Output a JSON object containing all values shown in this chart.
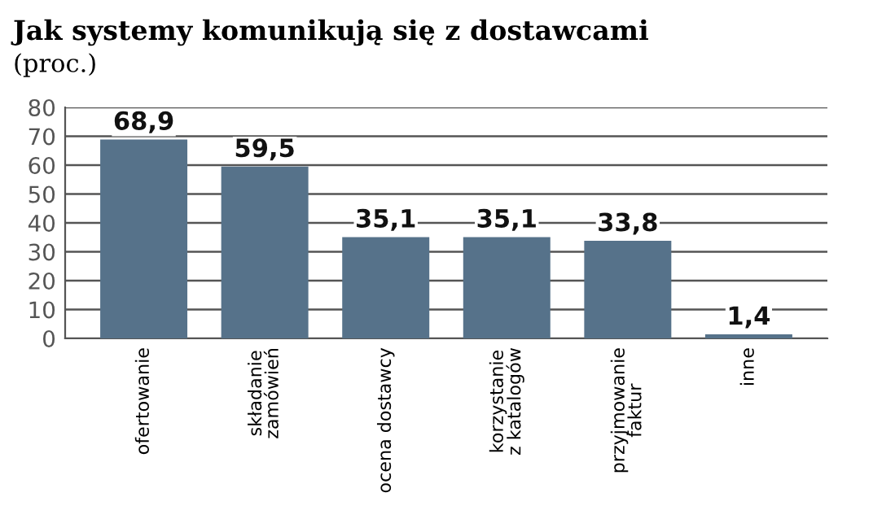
{
  "chart_data": {
    "type": "bar",
    "title": "Jak systemy komunikują się z dostawcami",
    "subtitle": "(proc.)",
    "categories": [
      "ofertowanie",
      "składanie\nzamówień",
      "ocena dostawcy",
      "korzystanie\nz katalogów",
      "przyjmowanie\nfaktur",
      "inne"
    ],
    "values": [
      68.9,
      59.5,
      35.1,
      35.1,
      33.8,
      1.4
    ],
    "color": "#56728a",
    "value_labels": [
      "68,9",
      "59,5",
      "35,1",
      "35,1",
      "33,8",
      "1,4"
    ],
    "ylim": [
      0,
      80
    ],
    "yticks": [
      0,
      10,
      20,
      30,
      40,
      50,
      60,
      70,
      80
    ],
    "grid": "y",
    "legend": false
  }
}
